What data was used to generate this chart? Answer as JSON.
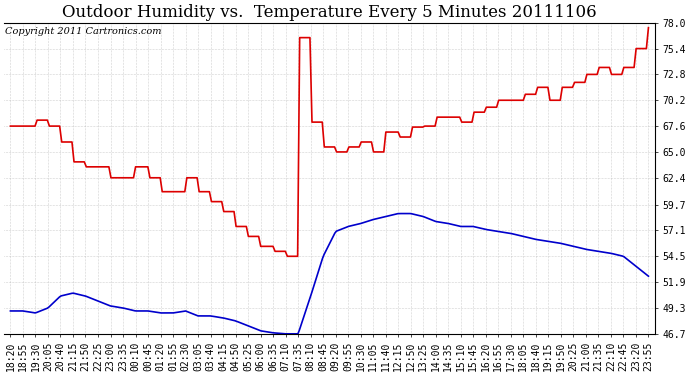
{
  "title": "Outdoor Humidity vs.  Temperature Every 5 Minutes 20111106",
  "copyright": "Copyright 2011 Cartronics.com",
  "ylabel_right_ticks": [
    46.7,
    49.3,
    51.9,
    54.5,
    57.1,
    59.7,
    62.4,
    65.0,
    67.6,
    70.2,
    72.8,
    75.4,
    78.0
  ],
  "ylim": [
    46.7,
    78.0
  ],
  "bg_color": "#ffffff",
  "plot_bg_color": "#ffffff",
  "grid_color": "#aaaaaa",
  "line_red_color": "#dd0000",
  "line_blue_color": "#0000cc",
  "title_fontsize": 12,
  "copyright_fontsize": 7,
  "tick_fontsize": 7,
  "x_labels": [
    "18:20",
    "18:55",
    "19:30",
    "20:05",
    "20:40",
    "21:15",
    "21:50",
    "22:25",
    "23:00",
    "23:35",
    "00:10",
    "00:45",
    "01:20",
    "01:55",
    "02:30",
    "03:05",
    "03:40",
    "04:15",
    "04:50",
    "05:25",
    "06:00",
    "06:35",
    "07:10",
    "07:35",
    "08:10",
    "08:45",
    "09:20",
    "09:55",
    "10:30",
    "11:05",
    "11:40",
    "12:15",
    "12:50",
    "13:25",
    "14:00",
    "14:35",
    "15:10",
    "15:45",
    "16:20",
    "16:55",
    "17:30",
    "18:05",
    "18:40",
    "19:15",
    "19:50",
    "20:25",
    "21:00",
    "21:35",
    "22:10",
    "22:45",
    "23:20",
    "23:55"
  ],
  "red_data": [
    67.6,
    67.6,
    68.2,
    67.6,
    66.0,
    64.0,
    63.5,
    63.5,
    62.4,
    62.4,
    63.5,
    62.4,
    61.0,
    61.0,
    62.4,
    61.0,
    60.0,
    59.0,
    57.5,
    56.5,
    55.5,
    55.0,
    54.5,
    76.5,
    68.0,
    65.5,
    65.0,
    65.5,
    66.0,
    65.0,
    67.0,
    66.5,
    67.5,
    67.6,
    68.5,
    68.5,
    68.0,
    69.0,
    69.5,
    70.2,
    70.2,
    70.8,
    71.5,
    70.2,
    71.5,
    72.0,
    72.8,
    73.5,
    72.8,
    73.5,
    75.4,
    77.5
  ],
  "blue_data": [
    49.0,
    49.0,
    48.8,
    49.3,
    50.5,
    50.8,
    50.5,
    50.0,
    49.5,
    49.3,
    49.0,
    49.0,
    48.8,
    48.8,
    49.0,
    48.5,
    48.5,
    48.3,
    48.0,
    47.5,
    47.0,
    46.8,
    46.7,
    46.7,
    50.5,
    54.5,
    57.0,
    57.5,
    57.8,
    58.2,
    58.5,
    58.8,
    58.8,
    58.5,
    58.0,
    57.8,
    57.5,
    57.5,
    57.2,
    57.0,
    56.8,
    56.5,
    56.2,
    56.0,
    55.8,
    55.5,
    55.2,
    55.0,
    54.8,
    54.5,
    53.5,
    52.5
  ]
}
